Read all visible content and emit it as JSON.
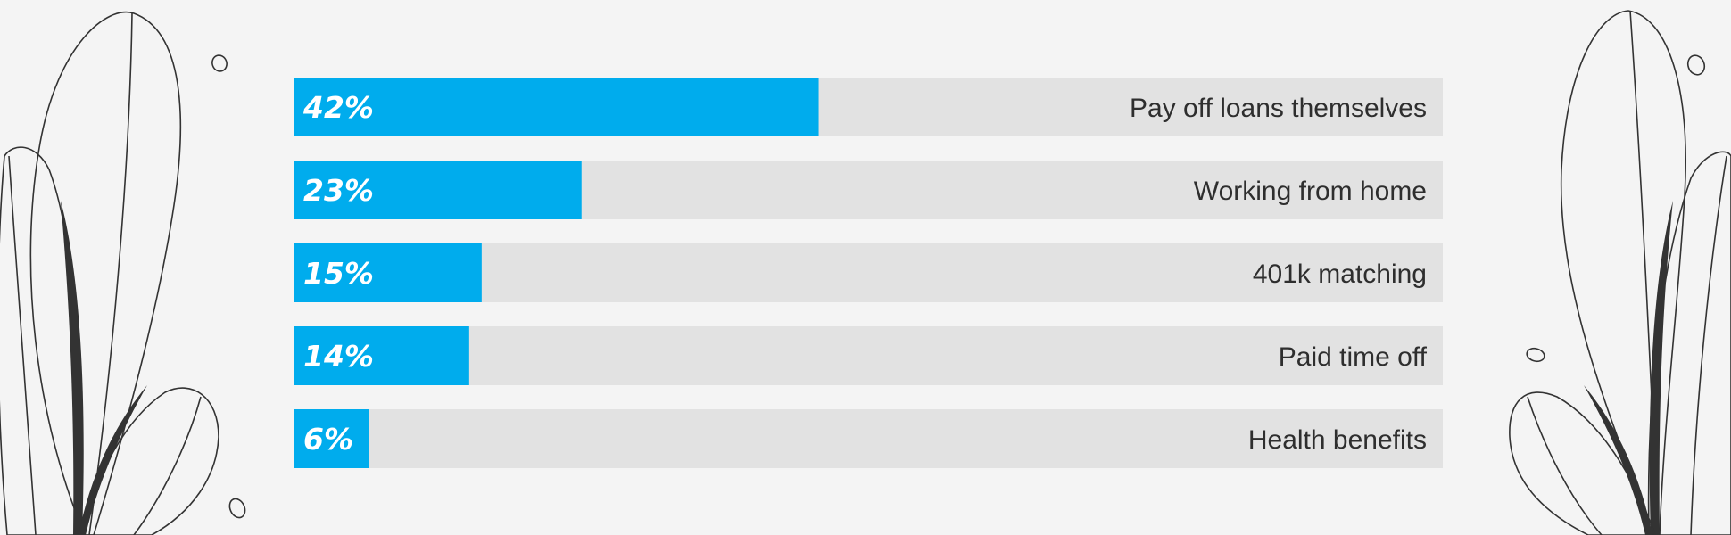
{
  "chart_data": {
    "type": "bar",
    "orientation": "horizontal",
    "categories": [
      "Pay off loans themselves",
      "Working from home",
      "401k matching",
      "Paid time off",
      "Health benefits"
    ],
    "values": [
      42,
      23,
      15,
      14,
      6
    ],
    "value_labels": [
      "42%",
      "23%",
      "15%",
      "14%",
      "6%"
    ],
    "xlim": [
      0,
      92
    ],
    "title": "",
    "xlabel": "",
    "ylabel": "",
    "grid": false,
    "legend": "none"
  },
  "colors": {
    "background": "#f4f4f4",
    "bar": "#00aced",
    "track": "#e2e2e2",
    "value_text": "#ffffff",
    "category_text": "#2e2e2e",
    "decoration": "#333333"
  },
  "decorations": {
    "left": "leaf-plant-icon",
    "right": "leaf-plant-icon"
  }
}
